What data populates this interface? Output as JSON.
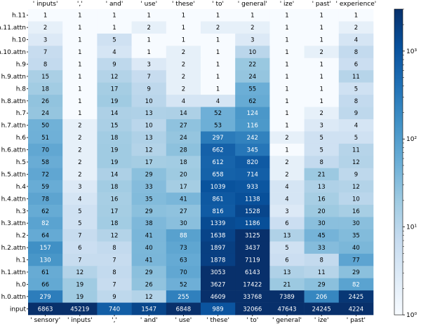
{
  "chart_data": {
    "type": "heatmap",
    "title": "",
    "xlabel": "",
    "ylabel": "",
    "color_scale": "log",
    "colormap": "Blues",
    "color_range": [
      1,
      3000
    ],
    "colorbar_ticks": [
      {
        "value": 1,
        "label": "10⁰"
      },
      {
        "value": 10,
        "label": "10¹"
      },
      {
        "value": 100,
        "label": "10²"
      },
      {
        "value": 1000,
        "label": "10³"
      }
    ],
    "x_labels_top": [
      "' inputs'",
      "','",
      "' and'",
      "' use'",
      "' these'",
      "' to'",
      "' general'",
      "' ize'",
      "' past'",
      "' experience'"
    ],
    "x_labels_bottom": [
      "' sensory'",
      "' inputs'",
      "','",
      "' and'",
      "' use'",
      "' these'",
      "' to'",
      "' general'",
      "' ize'",
      "' past'"
    ],
    "y_labels": [
      "h.11",
      "h.11.attn",
      "h.10",
      "h.10.attn",
      "h.9",
      "h.9.attn",
      "h.8",
      "h.8.attn",
      "h.7",
      "h.7.attn",
      "h.6",
      "h.6.attn",
      "h.5",
      "h.5.attn",
      "h.4",
      "h.4.attn",
      "h.3",
      "h.3.attn",
      "h.2",
      "h.2.attn",
      "h.1",
      "h.1.attn",
      "h.0",
      "h.0.attn",
      "input"
    ],
    "values": [
      [
        1,
        1,
        1,
        1,
        1,
        1,
        1,
        1,
        1,
        1
      ],
      [
        2,
        1,
        1,
        2,
        1,
        2,
        2,
        1,
        1,
        2
      ],
      [
        3,
        1,
        5,
        1,
        1,
        1,
        3,
        1,
        1,
        4
      ],
      [
        7,
        1,
        4,
        1,
        2,
        1,
        10,
        1,
        2,
        8
      ],
      [
        8,
        1,
        9,
        3,
        2,
        1,
        22,
        1,
        1,
        6
      ],
      [
        15,
        1,
        12,
        7,
        2,
        1,
        24,
        1,
        1,
        11
      ],
      [
        18,
        1,
        17,
        9,
        2,
        1,
        55,
        1,
        1,
        5
      ],
      [
        26,
        1,
        19,
        10,
        4,
        4,
        62,
        1,
        1,
        8
      ],
      [
        24,
        1,
        14,
        13,
        14,
        52,
        124,
        1,
        2,
        9
      ],
      [
        50,
        2,
        15,
        10,
        27,
        53,
        116,
        1,
        3,
        4
      ],
      [
        51,
        2,
        18,
        13,
        24,
        297,
        242,
        2,
        5,
        5
      ],
      [
        70,
        2,
        19,
        12,
        28,
        662,
        345,
        1,
        5,
        11
      ],
      [
        58,
        2,
        19,
        17,
        18,
        612,
        820,
        2,
        8,
        12
      ],
      [
        72,
        2,
        14,
        29,
        20,
        658,
        714,
        2,
        21,
        9
      ],
      [
        59,
        3,
        18,
        33,
        17,
        1039,
        933,
        4,
        13,
        12
      ],
      [
        78,
        4,
        16,
        35,
        41,
        861,
        1138,
        4,
        16,
        10
      ],
      [
        62,
        5,
        17,
        29,
        27,
        816,
        1528,
        3,
        20,
        16
      ],
      [
        82,
        5,
        18,
        38,
        30,
        1339,
        1186,
        6,
        30,
        30
      ],
      [
        64,
        7,
        12,
        41,
        88,
        1638,
        3125,
        13,
        45,
        35
      ],
      [
        157,
        6,
        8,
        40,
        73,
        1897,
        3437,
        5,
        33,
        40
      ],
      [
        130,
        7,
        7,
        41,
        63,
        1878,
        7119,
        6,
        8,
        77
      ],
      [
        61,
        12,
        8,
        29,
        70,
        3053,
        6143,
        13,
        11,
        29
      ],
      [
        66,
        19,
        7,
        26,
        52,
        3627,
        17422,
        21,
        29,
        82
      ],
      [
        279,
        19,
        9,
        12,
        255,
        4609,
        33768,
        7389,
        206,
        2425
      ],
      [
        6863,
        45219,
        740,
        1547,
        6848,
        989,
        32066,
        47643,
        24245,
        4224
      ]
    ]
  }
}
